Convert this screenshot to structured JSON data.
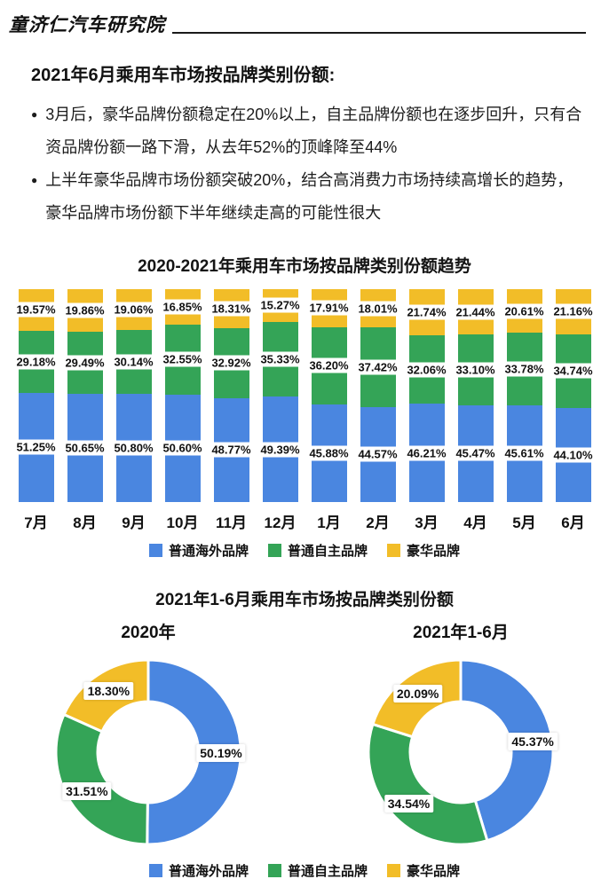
{
  "header": {
    "brand": "童济仁汽车研究院"
  },
  "intro": {
    "title": "2021年6月乘用车市场按品牌类别份额:",
    "bullets": [
      "3月后，豪华品牌份额稳定在20%以上，自主品牌份额也在逐步回升，只有合资品牌份额一路下滑，从去年52%的顶峰降至44%",
      "上半年豪华品牌市场份额突破20%，结合高消费力市场持续高增长的趋势，豪华品牌市场份额下半年继续走高的可能性很大"
    ]
  },
  "colors": {
    "blue": "#4A86E0",
    "green": "#34A457",
    "yellow": "#F2BD28"
  },
  "chart_data": [
    {
      "type": "bar",
      "stacked": true,
      "title": "2020-2021年乘用车市场按品牌类别份额趋势",
      "categories": [
        "7月",
        "8月",
        "9月",
        "10月",
        "11月",
        "12月",
        "1月",
        "2月",
        "3月",
        "4月",
        "5月",
        "6月"
      ],
      "ylim": [
        0,
        100
      ],
      "legend_position": "bottom",
      "series": [
        {
          "id": "overseas",
          "name": "普通海外品牌",
          "color_key": "blue",
          "values": [
            51.25,
            50.65,
            50.8,
            50.6,
            48.77,
            49.39,
            45.88,
            44.57,
            46.21,
            45.47,
            45.61,
            44.1
          ],
          "labels": [
            "51.25%",
            "50.65%",
            "50.80%",
            "50.60%",
            "48.77%",
            "49.39%",
            "45.88%",
            "44.57%",
            "46.21%",
            "45.47%",
            "45.61%",
            "44.10%"
          ]
        },
        {
          "id": "domestic",
          "name": "普通自主品牌",
          "color_key": "green",
          "values": [
            29.18,
            29.49,
            30.14,
            32.55,
            32.92,
            35.33,
            36.2,
            37.42,
            32.06,
            33.1,
            33.78,
            34.74
          ],
          "labels": [
            "29.18%",
            "29.49%",
            "30.14%",
            "32.55%",
            "32.92%",
            "35.33%",
            "36.20%",
            "37.42%",
            "32.06%",
            "33.10%",
            "33.78%",
            "34.74%"
          ]
        },
        {
          "id": "luxury",
          "name": "豪华品牌",
          "color_key": "yellow",
          "values": [
            19.57,
            19.86,
            19.06,
            16.85,
            18.31,
            15.27,
            17.91,
            18.01,
            21.74,
            21.44,
            20.61,
            21.16
          ],
          "labels": [
            "19.57%",
            "19.86%",
            "19.06%",
            "16.85%",
            "18.31%",
            "15.27%",
            "17.91%",
            "18.01%",
            "21.74%",
            "21.44%",
            "20.61%",
            "21.16%"
          ]
        }
      ]
    },
    {
      "type": "pie",
      "title": "2021年1-6月乘用车市场按品牌类别份额",
      "legend_position": "bottom",
      "pies": [
        {
          "subtitle": "2020年",
          "slices": [
            {
              "id": "overseas",
              "name": "普通海外品牌",
              "color_key": "blue",
              "value": 50.19,
              "label": "50.19%"
            },
            {
              "id": "domestic",
              "name": "普通自主品牌",
              "color_key": "green",
              "value": 31.51,
              "label": "31.51%"
            },
            {
              "id": "luxury",
              "name": "豪华品牌",
              "color_key": "yellow",
              "value": 18.3,
              "label": "18.30%"
            }
          ]
        },
        {
          "subtitle": "2021年1-6月",
          "slices": [
            {
              "id": "overseas",
              "name": "普通海外品牌",
              "color_key": "blue",
              "value": 45.37,
              "label": "45.37%"
            },
            {
              "id": "domestic",
              "name": "普通自主品牌",
              "color_key": "green",
              "value": 34.54,
              "label": "34.54%"
            },
            {
              "id": "luxury",
              "name": "豪华品牌",
              "color_key": "yellow",
              "value": 20.09,
              "label": "20.09%"
            }
          ]
        }
      ]
    }
  ]
}
